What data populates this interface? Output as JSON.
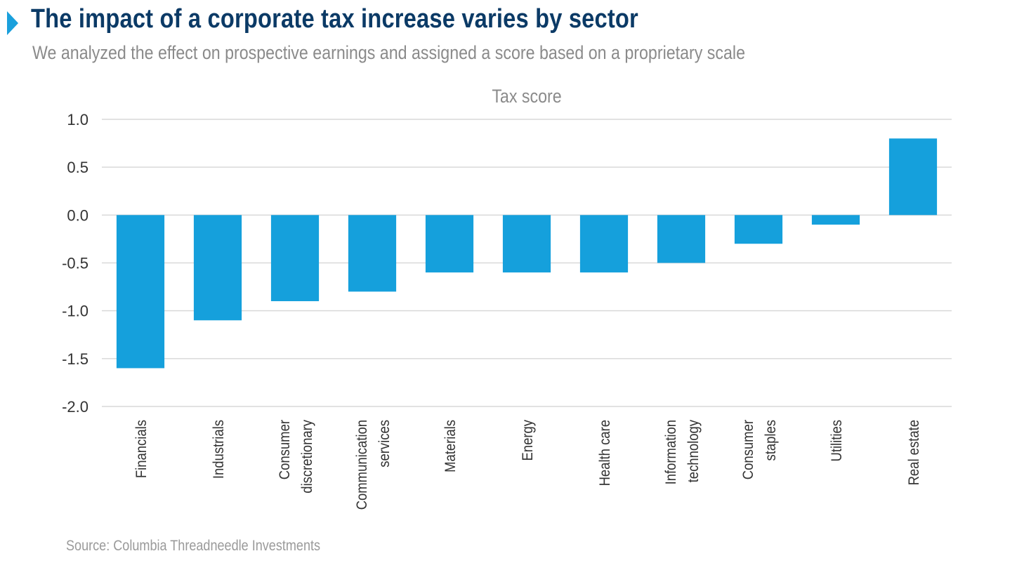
{
  "header": {
    "title": "The impact of a corporate tax increase varies by sector",
    "subtitle": "We analyzed the effect on prospective earnings and assigned a score based on a proprietary scale",
    "marker_icon": "triangle-right-icon"
  },
  "footer": {
    "source": "Source: Columbia Threadneedle Investments"
  },
  "colors": {
    "title": "#0b3a66",
    "bar": "#15a0dc",
    "grid": "#d9d9d9",
    "text": "#333333",
    "muted": "#8a8a8a"
  },
  "chart_data": {
    "type": "bar",
    "title": "Tax score",
    "xlabel": "",
    "ylabel": "",
    "ylim": [
      -2.0,
      1.0
    ],
    "yticks": [
      "1.0",
      "0.5",
      "0.0",
      "-0.5",
      "-1.0",
      "-1.5",
      "-2.0"
    ],
    "grid": true,
    "legend": "none",
    "categories": [
      [
        "Financials"
      ],
      [
        "Industrials"
      ],
      [
        "Consumer",
        "discretionary"
      ],
      [
        "Communication",
        "services"
      ],
      [
        "Materials"
      ],
      [
        "Energy"
      ],
      [
        "Health care"
      ],
      [
        "Information",
        "technology"
      ],
      [
        "Consumer",
        "staples"
      ],
      [
        "Utilities"
      ],
      [
        "Real estate"
      ]
    ],
    "values": [
      -1.6,
      -1.1,
      -0.9,
      -0.8,
      -0.6,
      -0.6,
      -0.6,
      -0.5,
      -0.3,
      -0.1,
      0.8
    ]
  }
}
